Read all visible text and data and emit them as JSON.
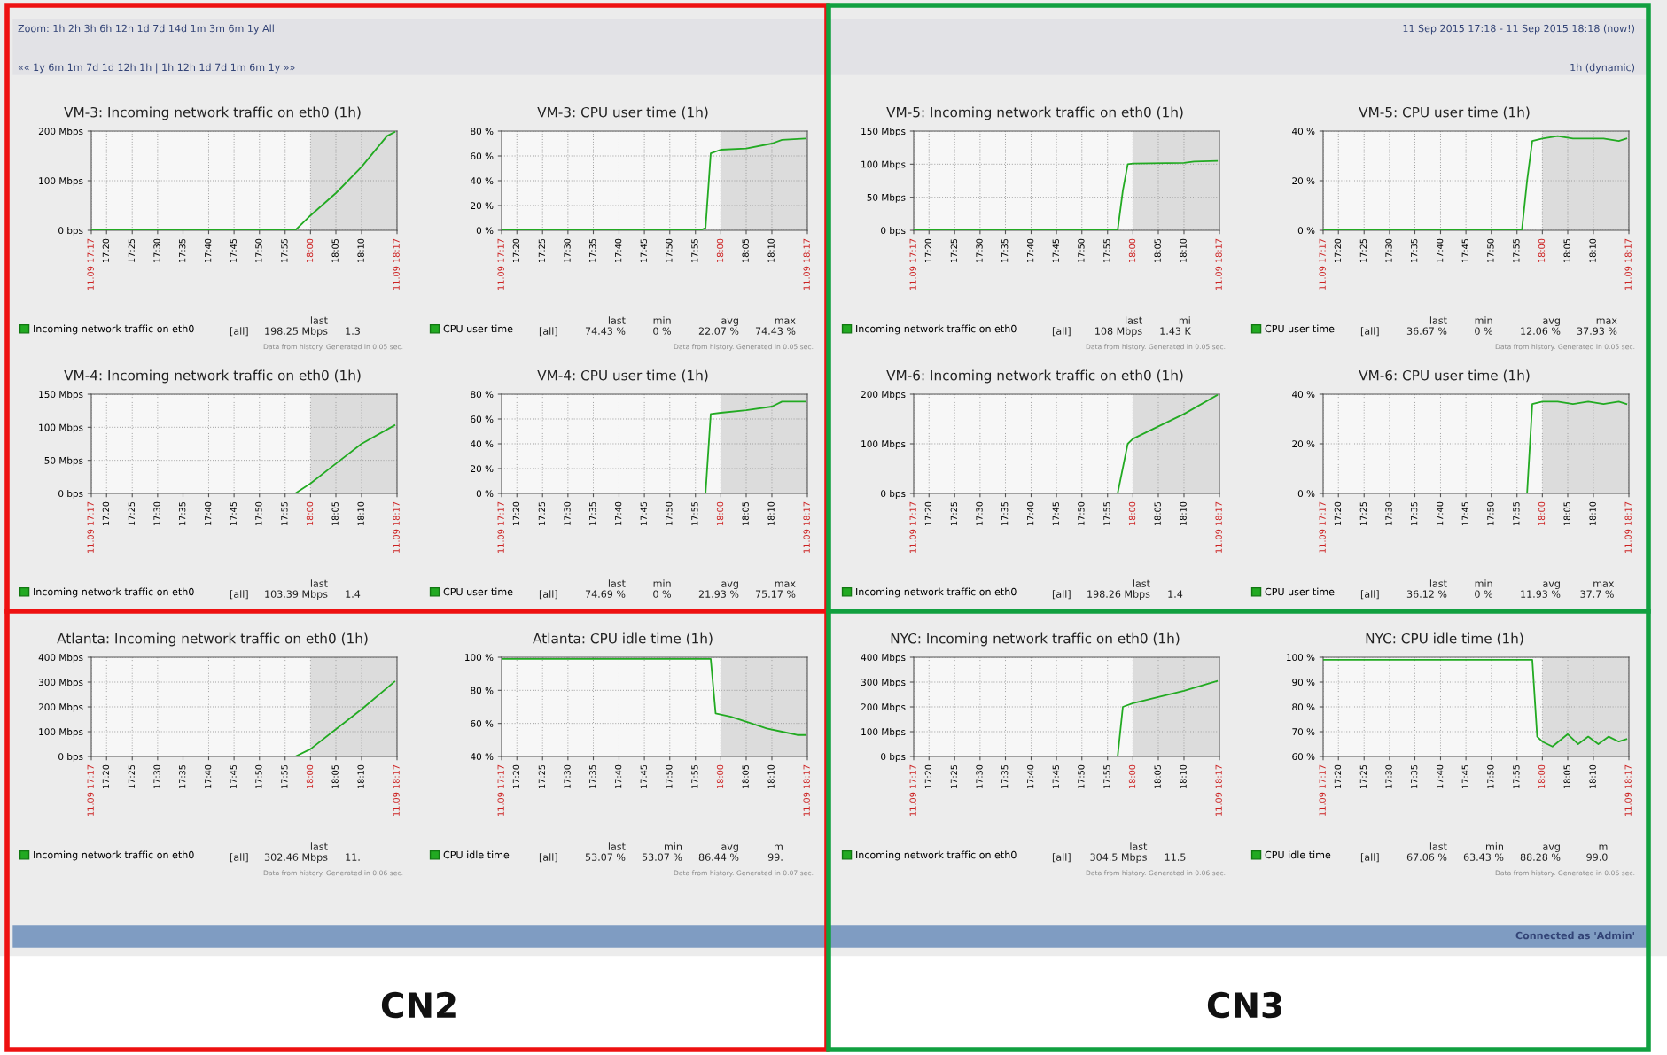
{
  "chart_data": [
    {
      "type": "other",
      "annotations": [
        "Zoom: 1h 2h 3h 6h 12h 1d 7d 14d 1m 3m 6m 1y All",
        "11 Sep 2015 17:18 - 11 Sep 2015 18:18 (now!)",
        "«« 1y 6m 1m 7d 1d 12h 1h | 1h 12h 1d 7d 1m 6m 1y »»",
        "1h (dynamic)"
      ]
    },
    {
      "type": "line",
      "title": "VM-3: Incoming network traffic on eth0 (1h)",
      "subtitle": "Data from history. Generated in 0.05 sec.",
      "legend": "bottom",
      "grid": true,
      "xlim": [
        17.283,
        18.283
      ],
      "ylim": [
        0,
        200
      ],
      "yticks": [
        {
          "value": 0,
          "label": "0 bps"
        },
        {
          "value": 100,
          "label": "100 Mbps"
        },
        {
          "value": 200,
          "label": "200 Mbps"
        }
      ],
      "xticks": [
        {
          "value": 17.283,
          "label": "11.09 17:17"
        },
        {
          "value": 17.333,
          "label": "17:20"
        },
        {
          "value": 17.417,
          "label": "17:25"
        },
        {
          "value": 17.5,
          "label": "17:30"
        },
        {
          "value": 17.583,
          "label": "17:35"
        },
        {
          "value": 17.667,
          "label": "17:40"
        },
        {
          "value": 17.75,
          "label": "17:45"
        },
        {
          "value": 17.833,
          "label": "17:50"
        },
        {
          "value": 17.917,
          "label": "17:55"
        },
        {
          "value": 18.0,
          "label": "18:00"
        },
        {
          "value": 18.083,
          "label": "18:05"
        },
        {
          "value": 18.167,
          "label": "18:10"
        },
        {
          "value": 18.283,
          "label": "11.09 18:17"
        }
      ],
      "bands": [
        {
          "axis": "x",
          "from": 18.0,
          "to": 18.283,
          "color": "#dcdcdc"
        }
      ],
      "annotations": [
        "[all]",
        "last\n198.25 Mbps",
        "1.3"
      ],
      "series": [
        {
          "name": "Incoming network traffic on eth0",
          "color": "#22aa22",
          "x": [
            17.283,
            17.95,
            18.0,
            18.083,
            18.167,
            18.25,
            18.275
          ],
          "values": [
            0,
            0,
            30,
            75,
            128,
            190,
            198
          ]
        }
      ]
    },
    {
      "type": "line",
      "title": "VM-3: CPU user time (1h)",
      "subtitle": "Data from history. Generated in 0.05 sec.",
      "legend": "bottom",
      "grid": true,
      "xlim": [
        17.283,
        18.283
      ],
      "ylim": [
        0,
        80
      ],
      "yticks": [
        {
          "value": 0,
          "label": "0 %"
        },
        {
          "value": 20,
          "label": "20 %"
        },
        {
          "value": 40,
          "label": "40 %"
        },
        {
          "value": 60,
          "label": "60 %"
        },
        {
          "value": 80,
          "label": "80 %"
        }
      ],
      "xticks": [
        {
          "value": 17.283,
          "label": "11.09 17:17"
        },
        {
          "value": 17.333,
          "label": "17:20"
        },
        {
          "value": 17.417,
          "label": "17:25"
        },
        {
          "value": 17.5,
          "label": "17:30"
        },
        {
          "value": 17.583,
          "label": "17:35"
        },
        {
          "value": 17.667,
          "label": "17:40"
        },
        {
          "value": 17.75,
          "label": "17:45"
        },
        {
          "value": 17.833,
          "label": "17:50"
        },
        {
          "value": 17.917,
          "label": "17:55"
        },
        {
          "value": 18.0,
          "label": "18:00"
        },
        {
          "value": 18.083,
          "label": "18:05"
        },
        {
          "value": 18.167,
          "label": "18:10"
        },
        {
          "value": 18.283,
          "label": "11.09 18:17"
        }
      ],
      "bands": [
        {
          "axis": "x",
          "from": 18.0,
          "to": 18.283,
          "color": "#dcdcdc"
        }
      ],
      "annotations": [
        "[all]",
        "last\n74.43 %",
        "min\n0 %",
        "avg\n22.07 %",
        "max\n74.43 %"
      ],
      "series": [
        {
          "name": "CPU user time",
          "color": "#22aa22",
          "x": [
            17.283,
            17.933,
            17.95,
            17.967,
            18.0,
            18.083,
            18.167,
            18.2,
            18.275
          ],
          "values": [
            0,
            0,
            2,
            62,
            65,
            66,
            70,
            73,
            74
          ]
        }
      ]
    },
    {
      "type": "line",
      "title": "VM-5: Incoming network traffic on eth0 (1h)",
      "subtitle": "Data from history. Generated in 0.05 sec.",
      "legend": "bottom",
      "grid": true,
      "xlim": [
        17.283,
        18.283
      ],
      "ylim": [
        0,
        150
      ],
      "yticks": [
        {
          "value": 0,
          "label": "0 bps"
        },
        {
          "value": 50,
          "label": "50 Mbps"
        },
        {
          "value": 100,
          "label": "100 Mbps"
        },
        {
          "value": 150,
          "label": "150 Mbps"
        }
      ],
      "xticks": [
        {
          "value": 17.283,
          "label": "11.09 17:17"
        },
        {
          "value": 17.333,
          "label": "17:20"
        },
        {
          "value": 17.417,
          "label": "17:25"
        },
        {
          "value": 17.5,
          "label": "17:30"
        },
        {
          "value": 17.583,
          "label": "17:35"
        },
        {
          "value": 17.667,
          "label": "17:40"
        },
        {
          "value": 17.75,
          "label": "17:45"
        },
        {
          "value": 17.833,
          "label": "17:50"
        },
        {
          "value": 17.917,
          "label": "17:55"
        },
        {
          "value": 18.0,
          "label": "18:00"
        },
        {
          "value": 18.083,
          "label": "18:05"
        },
        {
          "value": 18.167,
          "label": "18:10"
        },
        {
          "value": 18.283,
          "label": "11.09 18:17"
        }
      ],
      "bands": [
        {
          "axis": "x",
          "from": 18.0,
          "to": 18.283,
          "color": "#dcdcdc"
        }
      ],
      "annotations": [
        "[all]",
        "last\n108 Mbps",
        "mi\n1.43 K"
      ],
      "series": [
        {
          "name": "Incoming network traffic on eth0",
          "color": "#22aa22",
          "x": [
            17.283,
            17.95,
            17.967,
            17.983,
            18.0,
            18.167,
            18.2,
            18.275
          ],
          "values": [
            0,
            0,
            60,
            100,
            101,
            102,
            104,
            105
          ]
        }
      ]
    },
    {
      "type": "line",
      "title": "VM-5: CPU user time (1h)",
      "subtitle": "Data from history. Generated in 0.05 sec.",
      "legend": "bottom",
      "grid": true,
      "xlim": [
        17.283,
        18.283
      ],
      "ylim": [
        0,
        40
      ],
      "yticks": [
        {
          "value": 0,
          "label": "0 %"
        },
        {
          "value": 20,
          "label": "20 %"
        },
        {
          "value": 40,
          "label": "40 %"
        }
      ],
      "xticks": [
        {
          "value": 17.283,
          "label": "11.09 17:17"
        },
        {
          "value": 17.333,
          "label": "17:20"
        },
        {
          "value": 17.417,
          "label": "17:25"
        },
        {
          "value": 17.5,
          "label": "17:30"
        },
        {
          "value": 17.583,
          "label": "17:35"
        },
        {
          "value": 17.667,
          "label": "17:40"
        },
        {
          "value": 17.75,
          "label": "17:45"
        },
        {
          "value": 17.833,
          "label": "17:50"
        },
        {
          "value": 17.917,
          "label": "17:55"
        },
        {
          "value": 18.0,
          "label": "18:00"
        },
        {
          "value": 18.083,
          "label": "18:05"
        },
        {
          "value": 18.167,
          "label": "18:10"
        },
        {
          "value": 18.283,
          "label": "11.09 18:17"
        }
      ],
      "bands": [
        {
          "axis": "x",
          "from": 18.0,
          "to": 18.283,
          "color": "#dcdcdc"
        }
      ],
      "annotations": [
        "[all]",
        "last\n36.67 %",
        "min\n0 %",
        "avg\n12.06 %",
        "max\n37.93 %"
      ],
      "series": [
        {
          "name": "CPU user time",
          "color": "#22aa22",
          "x": [
            17.283,
            17.933,
            17.95,
            17.967,
            18.0,
            18.05,
            18.1,
            18.15,
            18.2,
            18.25,
            18.275
          ],
          "values": [
            0,
            0,
            20,
            36,
            37,
            38,
            37,
            37,
            37,
            36,
            37
          ]
        }
      ]
    },
    {
      "type": "line",
      "title": "VM-4: Incoming network traffic on eth0 (1h)",
      "legend": "bottom",
      "grid": true,
      "xlim": [
        17.283,
        18.283
      ],
      "ylim": [
        0,
        150
      ],
      "yticks": [
        {
          "value": 0,
          "label": "0 bps"
        },
        {
          "value": 50,
          "label": "50 Mbps"
        },
        {
          "value": 100,
          "label": "100 Mbps"
        },
        {
          "value": 150,
          "label": "150 Mbps"
        }
      ],
      "xticks": [
        {
          "value": 17.283,
          "label": "11.09 17:17"
        },
        {
          "value": 17.333,
          "label": "17:20"
        },
        {
          "value": 17.417,
          "label": "17:25"
        },
        {
          "value": 17.5,
          "label": "17:30"
        },
        {
          "value": 17.583,
          "label": "17:35"
        },
        {
          "value": 17.667,
          "label": "17:40"
        },
        {
          "value": 17.75,
          "label": "17:45"
        },
        {
          "value": 17.833,
          "label": "17:50"
        },
        {
          "value": 17.917,
          "label": "17:55"
        },
        {
          "value": 18.0,
          "label": "18:00"
        },
        {
          "value": 18.083,
          "label": "18:05"
        },
        {
          "value": 18.167,
          "label": "18:10"
        },
        {
          "value": 18.283,
          "label": "11.09 18:17"
        }
      ],
      "bands": [
        {
          "axis": "x",
          "from": 18.0,
          "to": 18.283,
          "color": "#dcdcdc"
        }
      ],
      "annotations": [
        "[all]",
        "last\n103.39 Mbps",
        "1.4"
      ],
      "series": [
        {
          "name": "Incoming network traffic on eth0",
          "color": "#22aa22",
          "x": [
            17.283,
            17.95,
            18.0,
            18.083,
            18.167,
            18.275
          ],
          "values": [
            0,
            0,
            15,
            45,
            75,
            103
          ]
        }
      ]
    },
    {
      "type": "line",
      "title": "VM-4: CPU user time (1h)",
      "legend": "bottom",
      "grid": true,
      "xlim": [
        17.283,
        18.283
      ],
      "ylim": [
        0,
        80
      ],
      "yticks": [
        {
          "value": 0,
          "label": "0 %"
        },
        {
          "value": 20,
          "label": "20 %"
        },
        {
          "value": 40,
          "label": "40 %"
        },
        {
          "value": 60,
          "label": "60 %"
        },
        {
          "value": 80,
          "label": "80 %"
        }
      ],
      "xticks": [
        {
          "value": 17.283,
          "label": "11.09 17:17"
        },
        {
          "value": 17.333,
          "label": "17:20"
        },
        {
          "value": 17.417,
          "label": "17:25"
        },
        {
          "value": 17.5,
          "label": "17:30"
        },
        {
          "value": 17.583,
          "label": "17:35"
        },
        {
          "value": 17.667,
          "label": "17:40"
        },
        {
          "value": 17.75,
          "label": "17:45"
        },
        {
          "value": 17.833,
          "label": "17:50"
        },
        {
          "value": 17.917,
          "label": "17:55"
        },
        {
          "value": 18.0,
          "label": "18:00"
        },
        {
          "value": 18.083,
          "label": "18:05"
        },
        {
          "value": 18.167,
          "label": "18:10"
        },
        {
          "value": 18.283,
          "label": "11.09 18:17"
        }
      ],
      "bands": [
        {
          "axis": "x",
          "from": 18.0,
          "to": 18.283,
          "color": "#dcdcdc"
        }
      ],
      "annotations": [
        "[all]",
        "last\n74.69 %",
        "min\n0 %",
        "avg\n21.93 %",
        "max\n75.17 %"
      ],
      "series": [
        {
          "name": "CPU user time",
          "color": "#22aa22",
          "x": [
            17.283,
            17.95,
            17.967,
            18.0,
            18.083,
            18.167,
            18.2,
            18.275
          ],
          "values": [
            0,
            0,
            64,
            65,
            67,
            70,
            74,
            74
          ]
        }
      ]
    },
    {
      "type": "line",
      "title": "VM-6: Incoming network traffic on eth0 (1h)",
      "legend": "bottom",
      "grid": true,
      "xlim": [
        17.283,
        18.283
      ],
      "ylim": [
        0,
        200
      ],
      "yticks": [
        {
          "value": 0,
          "label": "0 bps"
        },
        {
          "value": 100,
          "label": "100 Mbps"
        },
        {
          "value": 200,
          "label": "200 Mbps"
        }
      ],
      "xticks": [
        {
          "value": 17.283,
          "label": "11.09 17:17"
        },
        {
          "value": 17.333,
          "label": "17:20"
        },
        {
          "value": 17.417,
          "label": "17:25"
        },
        {
          "value": 17.5,
          "label": "17:30"
        },
        {
          "value": 17.583,
          "label": "17:35"
        },
        {
          "value": 17.667,
          "label": "17:40"
        },
        {
          "value": 17.75,
          "label": "17:45"
        },
        {
          "value": 17.833,
          "label": "17:50"
        },
        {
          "value": 17.917,
          "label": "17:55"
        },
        {
          "value": 18.0,
          "label": "18:00"
        },
        {
          "value": 18.083,
          "label": "18:05"
        },
        {
          "value": 18.167,
          "label": "18:10"
        },
        {
          "value": 18.283,
          "label": "11.09 18:17"
        }
      ],
      "bands": [
        {
          "axis": "x",
          "from": 18.0,
          "to": 18.283,
          "color": "#dcdcdc"
        }
      ],
      "annotations": [
        "[all]",
        "last\n198.26 Mbps",
        "1.4"
      ],
      "series": [
        {
          "name": "Incoming network traffic on eth0",
          "color": "#22aa22",
          "x": [
            17.283,
            17.95,
            17.983,
            18.0,
            18.083,
            18.167,
            18.275
          ],
          "values": [
            0,
            0,
            100,
            110,
            135,
            160,
            198
          ]
        }
      ]
    },
    {
      "type": "line",
      "title": "VM-6: CPU user time (1h)",
      "legend": "bottom",
      "grid": true,
      "xlim": [
        17.283,
        18.283
      ],
      "ylim": [
        0,
        40
      ],
      "yticks": [
        {
          "value": 0,
          "label": "0 %"
        },
        {
          "value": 20,
          "label": "20 %"
        },
        {
          "value": 40,
          "label": "40 %"
        }
      ],
      "xticks": [
        {
          "value": 17.283,
          "label": "11.09 17:17"
        },
        {
          "value": 17.333,
          "label": "17:20"
        },
        {
          "value": 17.417,
          "label": "17:25"
        },
        {
          "value": 17.5,
          "label": "17:30"
        },
        {
          "value": 17.583,
          "label": "17:35"
        },
        {
          "value": 17.667,
          "label": "17:40"
        },
        {
          "value": 17.75,
          "label": "17:45"
        },
        {
          "value": 17.833,
          "label": "17:50"
        },
        {
          "value": 17.917,
          "label": "17:55"
        },
        {
          "value": 18.0,
          "label": "18:00"
        },
        {
          "value": 18.083,
          "label": "18:05"
        },
        {
          "value": 18.167,
          "label": "18:10"
        },
        {
          "value": 18.283,
          "label": "11.09 18:17"
        }
      ],
      "bands": [
        {
          "axis": "x",
          "from": 18.0,
          "to": 18.283,
          "color": "#dcdcdc"
        }
      ],
      "annotations": [
        "[all]",
        "last\n36.12 %",
        "min\n0 %",
        "avg\n11.93 %",
        "max\n37.7 %"
      ],
      "series": [
        {
          "name": "CPU user time",
          "color": "#22aa22",
          "x": [
            17.283,
            17.95,
            17.967,
            18.0,
            18.05,
            18.1,
            18.15,
            18.2,
            18.25,
            18.275
          ],
          "values": [
            0,
            0,
            36,
            37,
            37,
            36,
            37,
            36,
            37,
            36
          ]
        }
      ]
    },
    {
      "type": "line",
      "title": "Atlanta: Incoming network traffic on eth0 (1h)",
      "subtitle": "Data from history. Generated in 0.06 sec.",
      "legend": "bottom",
      "grid": true,
      "xlim": [
        17.283,
        18.283
      ],
      "ylim": [
        0,
        400
      ],
      "yticks": [
        {
          "value": 0,
          "label": "0 bps"
        },
        {
          "value": 100,
          "label": "100 Mbps"
        },
        {
          "value": 200,
          "label": "200 Mbps"
        },
        {
          "value": 300,
          "label": "300 Mbps"
        },
        {
          "value": 400,
          "label": "400 Mbps"
        }
      ],
      "xticks": [
        {
          "value": 17.283,
          "label": "11.09 17:17"
        },
        {
          "value": 17.333,
          "label": "17:20"
        },
        {
          "value": 17.417,
          "label": "17:25"
        },
        {
          "value": 17.5,
          "label": "17:30"
        },
        {
          "value": 17.583,
          "label": "17:35"
        },
        {
          "value": 17.667,
          "label": "17:40"
        },
        {
          "value": 17.75,
          "label": "17:45"
        },
        {
          "value": 17.833,
          "label": "17:50"
        },
        {
          "value": 17.917,
          "label": "17:55"
        },
        {
          "value": 18.0,
          "label": "18:00"
        },
        {
          "value": 18.083,
          "label": "18:05"
        },
        {
          "value": 18.167,
          "label": "18:10"
        },
        {
          "value": 18.283,
          "label": "11.09 18:17"
        }
      ],
      "bands": [
        {
          "axis": "x",
          "from": 18.0,
          "to": 18.283,
          "color": "#dcdcdc"
        }
      ],
      "annotations": [
        "[all]",
        "last\n302.46 Mbps",
        "11."
      ],
      "series": [
        {
          "name": "Incoming network traffic on eth0",
          "color": "#22aa22",
          "x": [
            17.283,
            17.95,
            18.0,
            18.083,
            18.167,
            18.275
          ],
          "values": [
            0,
            0,
            30,
            110,
            190,
            302
          ]
        }
      ]
    },
    {
      "type": "line",
      "title": "Atlanta: CPU idle time (1h)",
      "subtitle": "Data from history. Generated in 0.07 sec.",
      "legend": "bottom",
      "grid": true,
      "xlim": [
        17.283,
        18.283
      ],
      "ylim": [
        40,
        100
      ],
      "yticks": [
        {
          "value": 40,
          "label": "40 %"
        },
        {
          "value": 60,
          "label": "60 %"
        },
        {
          "value": 80,
          "label": "80 %"
        },
        {
          "value": 100,
          "label": "100 %"
        }
      ],
      "xticks": [
        {
          "value": 17.283,
          "label": "11.09 17:17"
        },
        {
          "value": 17.333,
          "label": "17:20"
        },
        {
          "value": 17.417,
          "label": "17:25"
        },
        {
          "value": 17.5,
          "label": "17:30"
        },
        {
          "value": 17.583,
          "label": "17:35"
        },
        {
          "value": 17.667,
          "label": "17:40"
        },
        {
          "value": 17.75,
          "label": "17:45"
        },
        {
          "value": 17.833,
          "label": "17:50"
        },
        {
          "value": 17.917,
          "label": "17:55"
        },
        {
          "value": 18.0,
          "label": "18:00"
        },
        {
          "value": 18.083,
          "label": "18:05"
        },
        {
          "value": 18.167,
          "label": "18:10"
        },
        {
          "value": 18.283,
          "label": "11.09 18:17"
        }
      ],
      "bands": [
        {
          "axis": "x",
          "from": 18.0,
          "to": 18.283,
          "color": "#dcdcdc"
        }
      ],
      "annotations": [
        "[all]",
        "last\n53.07 %",
        "min\n53.07 %",
        "avg\n86.44 %",
        "m\n99."
      ],
      "series": [
        {
          "name": "CPU idle time",
          "color": "#22aa22",
          "x": [
            17.283,
            17.967,
            17.983,
            18.033,
            18.1,
            18.15,
            18.2,
            18.25,
            18.275
          ],
          "values": [
            99,
            99,
            66,
            64,
            60,
            57,
            55,
            53,
            53
          ]
        }
      ]
    },
    {
      "type": "line",
      "title": "NYC: Incoming network traffic on eth0 (1h)",
      "subtitle": "Data from history. Generated in 0.06 sec.",
      "legend": "bottom",
      "grid": true,
      "xlim": [
        17.283,
        18.283
      ],
      "ylim": [
        0,
        400
      ],
      "yticks": [
        {
          "value": 0,
          "label": "0 bps"
        },
        {
          "value": 100,
          "label": "100 Mbps"
        },
        {
          "value": 200,
          "label": "200 Mbps"
        },
        {
          "value": 300,
          "label": "300 Mbps"
        },
        {
          "value": 400,
          "label": "400 Mbps"
        }
      ],
      "xticks": [
        {
          "value": 17.283,
          "label": "11.09 17:17"
        },
        {
          "value": 17.333,
          "label": "17:20"
        },
        {
          "value": 17.417,
          "label": "17:25"
        },
        {
          "value": 17.5,
          "label": "17:30"
        },
        {
          "value": 17.583,
          "label": "17:35"
        },
        {
          "value": 17.667,
          "label": "17:40"
        },
        {
          "value": 17.75,
          "label": "17:45"
        },
        {
          "value": 17.833,
          "label": "17:50"
        },
        {
          "value": 17.917,
          "label": "17:55"
        },
        {
          "value": 18.0,
          "label": "18:00"
        },
        {
          "value": 18.083,
          "label": "18:05"
        },
        {
          "value": 18.167,
          "label": "18:10"
        },
        {
          "value": 18.283,
          "label": "11.09 18:17"
        }
      ],
      "bands": [
        {
          "axis": "x",
          "from": 18.0,
          "to": 18.283,
          "color": "#dcdcdc"
        }
      ],
      "annotations": [
        "[all]",
        "last\n304.5 Mbps",
        "11.5"
      ],
      "series": [
        {
          "name": "Incoming network traffic on eth0",
          "color": "#22aa22",
          "x": [
            17.283,
            17.95,
            17.967,
            18.0,
            18.083,
            18.167,
            18.25,
            18.275
          ],
          "values": [
            0,
            0,
            200,
            215,
            240,
            265,
            295,
            304
          ]
        }
      ]
    },
    {
      "type": "line",
      "title": "NYC: CPU idle time (1h)",
      "subtitle": "Data from history. Generated in 0.06 sec.",
      "legend": "bottom",
      "grid": true,
      "xlim": [
        17.283,
        18.283
      ],
      "ylim": [
        60,
        100
      ],
      "yticks": [
        {
          "value": 60,
          "label": "60 %"
        },
        {
          "value": 70,
          "label": "70 %"
        },
        {
          "value": 80,
          "label": "80 %"
        },
        {
          "value": 90,
          "label": "90 %"
        },
        {
          "value": 100,
          "label": "100 %"
        }
      ],
      "xticks": [
        {
          "value": 17.283,
          "label": "11.09 17:17"
        },
        {
          "value": 17.333,
          "label": "17:20"
        },
        {
          "value": 17.417,
          "label": "17:25"
        },
        {
          "value": 17.5,
          "label": "17:30"
        },
        {
          "value": 17.583,
          "label": "17:35"
        },
        {
          "value": 17.667,
          "label": "17:40"
        },
        {
          "value": 17.75,
          "label": "17:45"
        },
        {
          "value": 17.833,
          "label": "17:50"
        },
        {
          "value": 17.917,
          "label": "17:55"
        },
        {
          "value": 18.0,
          "label": "18:00"
        },
        {
          "value": 18.083,
          "label": "18:05"
        },
        {
          "value": 18.167,
          "label": "18:10"
        },
        {
          "value": 18.283,
          "label": "11.09 18:17"
        }
      ],
      "bands": [
        {
          "axis": "x",
          "from": 18.0,
          "to": 18.283,
          "color": "#dcdcdc"
        }
      ],
      "annotations": [
        "[all]",
        "last\n67.06 %",
        "min\n63.43 %",
        "avg\n88.28 %",
        "m\n99.0"
      ],
      "series": [
        {
          "name": "CPU idle time",
          "color": "#22aa22",
          "x": [
            17.283,
            17.967,
            17.983,
            18.0,
            18.033,
            18.083,
            18.117,
            18.15,
            18.183,
            18.217,
            18.25,
            18.275
          ],
          "values": [
            99,
            99,
            68,
            66,
            64,
            69,
            65,
            68,
            65,
            68,
            66,
            67
          ]
        }
      ]
    },
    {
      "type": "other",
      "annotations": [
        "Connected as 'Admin'",
        "CN2",
        "CN3"
      ]
    }
  ]
}
